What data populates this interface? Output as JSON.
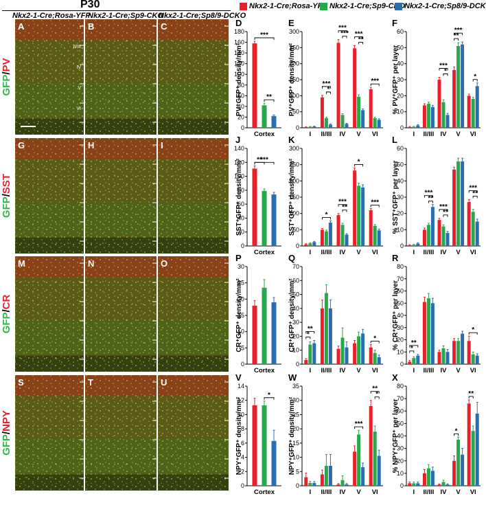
{
  "header": {
    "age": "P30",
    "col_titles": [
      "Nkx2-1-Cre;Rosa-YFP",
      "Nkx2-1-Cre;Sp9-CKO",
      "Nkx2-1-Cre;Sp8/9-DCKO"
    ]
  },
  "legend": [
    {
      "name": "Nkx2-1-Cre;Rosa-YFP",
      "color": "#e8202a"
    },
    {
      "name": "Nkx2-1-Cre;Sp9-CKO",
      "color": "#27a84a"
    },
    {
      "name": "Nkx2-1-Cre;Sp8/9-DCKO",
      "color": "#2a6db5"
    }
  ],
  "micro_rows": [
    {
      "letters": [
        "A",
        "B",
        "C"
      ],
      "stain_green": "GFP",
      "stain_sep": "/",
      "stain_red": "PV",
      "layers": [
        "I",
        "II/III",
        "IV",
        "V",
        "VI"
      ]
    },
    {
      "letters": [
        "G",
        "H",
        "I"
      ],
      "stain_green": "GFP",
      "stain_sep": "/",
      "stain_red": "SST"
    },
    {
      "letters": [
        "M",
        "N",
        "O"
      ],
      "stain_green": "GFP",
      "stain_sep": "/",
      "stain_red": "CR"
    },
    {
      "letters": [
        "S",
        "T",
        "U"
      ],
      "stain_green": "GFP",
      "stain_sep": "/",
      "stain_red": "NPY"
    }
  ],
  "colors": {
    "red": "#e8202a",
    "green": "#27a84a",
    "blue": "#2a6db5"
  },
  "chart_data": [
    {
      "id": "D",
      "type": "bar",
      "ylabel": "PV⁺GFP⁺ density/mm²",
      "categories": [
        "Cortex"
      ],
      "ylim": [
        0,
        180
      ],
      "yticks": [
        0,
        20,
        40,
        60,
        80,
        100,
        120,
        140,
        160,
        180
      ],
      "series": [
        {
          "values": [
            158
          ],
          "err": [
            4
          ]
        },
        {
          "values": [
            42
          ],
          "err": [
            4
          ]
        },
        {
          "values": [
            22
          ],
          "err": [
            2
          ]
        }
      ],
      "sig": [
        {
          "from": 0,
          "to": 2,
          "label": "***"
        },
        {
          "from": 1,
          "to": 2,
          "label": "**"
        }
      ]
    },
    {
      "id": "E",
      "type": "bar",
      "ylabel": "PV⁺GFP⁺ density/mm²",
      "categories": [
        "I",
        "II/III",
        "IV",
        "V",
        "VI"
      ],
      "ylim": [
        0,
        300
      ],
      "yticks": [
        0,
        50,
        100,
        150,
        200,
        250,
        300
      ],
      "series": [
        {
          "values": [
            2,
            95,
            265,
            248,
            120
          ],
          "err": [
            1,
            6,
            10,
            8,
            6
          ]
        },
        {
          "values": [
            3,
            30,
            40,
            97,
            30
          ],
          "err": [
            1,
            3,
            4,
            6,
            3
          ]
        },
        {
          "values": [
            4,
            10,
            12,
            55,
            25
          ],
          "err": [
            1,
            2,
            2,
            4,
            3
          ]
        }
      ],
      "sig": [
        {
          "cat": 1,
          "pairs": [
            [
              0,
              2,
              "***"
            ],
            [
              1,
              2,
              "*"
            ]
          ]
        },
        {
          "cat": 2,
          "pairs": [
            [
              0,
              2,
              "***"
            ],
            [
              1,
              2,
              "***"
            ]
          ]
        },
        {
          "cat": 3,
          "pairs": [
            [
              0,
              2,
              "***"
            ],
            [
              1,
              2,
              "**"
            ]
          ]
        },
        {
          "cat": 4,
          "pairs": [
            [
              0,
              2,
              "***"
            ]
          ]
        }
      ]
    },
    {
      "id": "F",
      "type": "bar",
      "ylabel": "% PV⁺GFP⁺ per layer",
      "categories": [
        "I",
        "II/III",
        "IV",
        "V",
        "VI"
      ],
      "ylim": [
        0,
        60
      ],
      "yticks": [
        0,
        10,
        20,
        30,
        40,
        50,
        60
      ],
      "series": [
        {
          "values": [
            0.5,
            14,
            30,
            36,
            20
          ],
          "err": [
            0.3,
            1,
            1.5,
            2,
            1
          ]
        },
        {
          "values": [
            0.6,
            15,
            16,
            51,
            18
          ],
          "err": [
            0.3,
            1,
            1.5,
            2,
            1
          ]
        },
        {
          "values": [
            1.5,
            13,
            8,
            52,
            26
          ],
          "err": [
            0.5,
            1,
            1,
            1.5,
            2
          ]
        }
      ],
      "sig": [
        {
          "cat": 2,
          "pairs": [
            [
              0,
              2,
              "***"
            ],
            [
              1,
              2,
              "*"
            ]
          ]
        },
        {
          "cat": 3,
          "pairs": [
            [
              0,
              2,
              "***"
            ],
            [
              0,
              1,
              "**"
            ]
          ]
        },
        {
          "cat": 4,
          "pairs": [
            [
              1,
              2,
              "*"
            ]
          ]
        }
      ]
    },
    {
      "id": "J",
      "type": "bar",
      "ylabel": "SST⁺GFP⁺ density/mm²",
      "categories": [
        "Cortex"
      ],
      "ylim": [
        0,
        140
      ],
      "yticks": [
        0,
        20,
        40,
        60,
        80,
        100,
        120,
        140
      ],
      "series": [
        {
          "values": [
            111
          ],
          "err": [
            4
          ]
        },
        {
          "values": [
            79
          ],
          "err": [
            3
          ]
        },
        {
          "values": [
            74
          ],
          "err": [
            3
          ]
        }
      ],
      "sig": [
        {
          "from": 0,
          "to": 2,
          "label": "***"
        },
        {
          "from": 0,
          "to": 1,
          "label": "**"
        }
      ]
    },
    {
      "id": "K",
      "type": "bar",
      "ylabel": "SST⁺GFP⁺ density/mm²",
      "categories": [
        "I",
        "II/III",
        "IV",
        "V",
        "VI"
      ],
      "ylim": [
        0,
        300
      ],
      "yticks": [
        0,
        50,
        100,
        150,
        200,
        250,
        300
      ],
      "series": [
        {
          "values": [
            5,
            50,
            95,
            232,
            110
          ],
          "err": [
            2,
            4,
            5,
            8,
            5
          ]
        },
        {
          "values": [
            8,
            45,
            65,
            185,
            62
          ],
          "err": [
            2,
            4,
            5,
            8,
            4
          ]
        },
        {
          "values": [
            12,
            72,
            35,
            180,
            48
          ],
          "err": [
            2,
            5,
            3,
            8,
            4
          ]
        }
      ],
      "sig": [
        {
          "cat": 1,
          "pairs": [
            [
              0,
              2,
              "*"
            ]
          ]
        },
        {
          "cat": 2,
          "pairs": [
            [
              0,
              2,
              "***"
            ],
            [
              1,
              2,
              "**"
            ]
          ]
        },
        {
          "cat": 3,
          "pairs": [
            [
              0,
              2,
              "*"
            ]
          ]
        },
        {
          "cat": 4,
          "pairs": [
            [
              0,
              2,
              "***"
            ]
          ]
        }
      ]
    },
    {
      "id": "L",
      "type": "bar",
      "ylabel": "% SST⁺GFP⁺ per layer",
      "categories": [
        "I",
        "II/III",
        "IV",
        "V",
        "VI"
      ],
      "ylim": [
        0,
        60
      ],
      "yticks": [
        0,
        10,
        20,
        30,
        40,
        50,
        60
      ],
      "series": [
        {
          "values": [
            0.5,
            10,
            16,
            47,
            27
          ],
          "err": [
            0.3,
            1,
            1,
            1.5,
            1.5
          ]
        },
        {
          "values": [
            0.7,
            13,
            12,
            52,
            21
          ],
          "err": [
            0.3,
            1,
            1,
            2,
            1.5
          ]
        },
        {
          "values": [
            1.5,
            24,
            8,
            52,
            15
          ],
          "err": [
            0.5,
            1.5,
            1,
            2,
            1.5
          ]
        }
      ],
      "sig": [
        {
          "cat": 1,
          "pairs": [
            [
              0,
              2,
              "***"
            ],
            [
              1,
              2,
              "**"
            ]
          ]
        },
        {
          "cat": 2,
          "pairs": [
            [
              0,
              2,
              "***"
            ],
            [
              1,
              2,
              "**"
            ]
          ]
        },
        {
          "cat": 4,
          "pairs": [
            [
              0,
              2,
              "***"
            ],
            [
              1,
              2,
              "**"
            ]
          ]
        }
      ]
    },
    {
      "id": "P",
      "type": "bar",
      "ylabel": "CR⁺GFP⁺ density/mm²",
      "categories": [
        "Cortex"
      ],
      "ylim": [
        0,
        30
      ],
      "yticks": [
        0,
        5,
        10,
        15,
        20,
        25,
        30
      ],
      "series": [
        {
          "values": [
            18
          ],
          "err": [
            1.5
          ]
        },
        {
          "values": [
            23.5
          ],
          "err": [
            2.5
          ]
        },
        {
          "values": [
            19
          ],
          "err": [
            1.5
          ]
        }
      ],
      "sig": []
    },
    {
      "id": "Q",
      "type": "bar",
      "ylabel": "CR⁺GFP⁺ density/mm²",
      "categories": [
        "I",
        "II/III",
        "IV",
        "V",
        "VI"
      ],
      "ylim": [
        0,
        70
      ],
      "yticks": [
        0,
        10,
        20,
        30,
        40,
        50,
        60,
        70
      ],
      "series": [
        {
          "values": [
            3,
            40,
            11,
            15,
            12
          ],
          "err": [
            1,
            6,
            2,
            2,
            2
          ]
        },
        {
          "values": [
            14,
            51,
            19,
            20,
            8
          ],
          "err": [
            2,
            6,
            7,
            3,
            2
          ]
        },
        {
          "values": [
            15,
            40,
            12,
            22,
            5
          ],
          "err": [
            2,
            6,
            4,
            3,
            1.5
          ]
        }
      ],
      "sig": [
        {
          "cat": 0,
          "pairs": [
            [
              0,
              2,
              "**"
            ],
            [
              0,
              1,
              "*"
            ]
          ]
        },
        {
          "cat": 4,
          "pairs": [
            [
              0,
              2,
              "*"
            ]
          ]
        }
      ]
    },
    {
      "id": "R",
      "type": "bar",
      "ylabel": "% CR⁺GFP⁺ per layer",
      "categories": [
        "I",
        "II/III",
        "IV",
        "V",
        "VI"
      ],
      "ylim": [
        0,
        80
      ],
      "yticks": [
        0,
        10,
        20,
        30,
        40,
        50,
        60,
        70,
        80
      ],
      "series": [
        {
          "values": [
            2,
            51,
            10,
            19,
            19
          ],
          "err": [
            1,
            4,
            1.5,
            2,
            4
          ]
        },
        {
          "values": [
            5,
            54,
            13,
            19,
            8
          ],
          "err": [
            1,
            4,
            2,
            2,
            2
          ]
        },
        {
          "values": [
            7,
            50,
            10,
            25,
            7
          ],
          "err": [
            1,
            4,
            2,
            2,
            1.5
          ]
        }
      ],
      "sig": [
        {
          "cat": 0,
          "pairs": [
            [
              0,
              2,
              "**"
            ],
            [
              0,
              1,
              "*"
            ]
          ]
        },
        {
          "cat": 4,
          "pairs": [
            [
              0,
              2,
              "*"
            ]
          ]
        }
      ]
    },
    {
      "id": "V",
      "type": "bar",
      "ylabel": "NPY⁺GFP⁺ density/mm²",
      "categories": [
        "Cortex"
      ],
      "ylim": [
        0,
        14
      ],
      "yticks": [
        0,
        2,
        4,
        6,
        8,
        10,
        12,
        14
      ],
      "series": [
        {
          "values": [
            11.3
          ],
          "err": [
            1
          ]
        },
        {
          "values": [
            11.3
          ],
          "err": [
            0.6
          ]
        },
        {
          "values": [
            6.3
          ],
          "err": [
            1.5
          ]
        }
      ],
      "sig": [
        {
          "from": 1,
          "to": 2,
          "label": "*"
        }
      ]
    },
    {
      "id": "W",
      "type": "bar",
      "ylabel": "NPY⁺GFP⁺ density/mm²",
      "categories": [
        "I",
        "II/III",
        "IV",
        "V",
        "VI"
      ],
      "ylim": [
        0,
        35
      ],
      "yticks": [
        0,
        5,
        10,
        15,
        20,
        25,
        30,
        35
      ],
      "series": [
        {
          "values": [
            3,
            4,
            0.5,
            12,
            28
          ],
          "err": [
            1.5,
            1.5,
            0.3,
            2,
            2
          ]
        },
        {
          "values": [
            1,
            7,
            2,
            18,
            19
          ],
          "err": [
            0.5,
            4,
            1.5,
            1.5,
            2
          ]
        },
        {
          "values": [
            1,
            7,
            0.5,
            6.5,
            10.5
          ],
          "err": [
            0.5,
            4,
            0.3,
            1.5,
            2
          ]
        }
      ],
      "sig": [
        {
          "cat": 3,
          "pairs": [
            [
              0,
              2,
              "***"
            ]
          ]
        },
        {
          "cat": 4,
          "pairs": [
            [
              0,
              2,
              "**"
            ],
            [
              1,
              2,
              "*"
            ]
          ]
        }
      ]
    },
    {
      "id": "X",
      "type": "bar",
      "ylabel": "% NPY⁺GFP⁺ per layer",
      "categories": [
        "I",
        "II/III",
        "IV",
        "V",
        "VI"
      ],
      "ylim": [
        0,
        80
      ],
      "yticks": [
        0,
        10,
        20,
        30,
        40,
        50,
        60,
        70,
        80
      ],
      "series": [
        {
          "values": [
            2,
            10,
            1,
            20,
            66
          ],
          "err": [
            1,
            3,
            0.5,
            4,
            3
          ]
        },
        {
          "values": [
            2,
            14,
            3,
            37,
            44
          ],
          "err": [
            1,
            3,
            1.5,
            2,
            4
          ]
        },
        {
          "values": [
            2,
            12,
            1,
            25,
            58
          ],
          "err": [
            1,
            3,
            0.5,
            5,
            9
          ]
        }
      ],
      "sig": [
        {
          "cat": 3,
          "pairs": [
            [
              0,
              1,
              "*"
            ]
          ]
        },
        {
          "cat": 4,
          "pairs": [
            [
              0,
              1,
              "**"
            ]
          ]
        }
      ]
    }
  ]
}
